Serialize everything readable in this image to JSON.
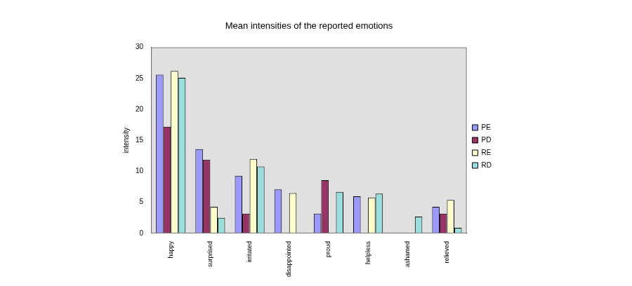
{
  "chart_data": {
    "type": "bar",
    "title": "Mean intensities of the reported emotions",
    "y_label": "intensity",
    "categories": [
      "happy",
      "surprised",
      "irritated",
      "disappointed",
      "proud",
      "helpless",
      "ashamed",
      "relieved"
    ],
    "series": [
      {
        "name": "PE",
        "color": "#9999ff",
        "values": [
          25.6,
          13.6,
          9.3,
          7.1,
          3.2,
          6.0,
          0,
          4.3
        ]
      },
      {
        "name": "PD",
        "color": "#993366",
        "values": [
          17.2,
          11.9,
          3.2,
          0,
          8.6,
          0,
          0,
          3.2
        ]
      },
      {
        "name": "RE",
        "color": "#ffffcc",
        "values": [
          26.2,
          4.3,
          12.0,
          6.5,
          0,
          5.8,
          0,
          5.4
        ]
      },
      {
        "name": "RD",
        "color": "#99dddd",
        "values": [
          25.1,
          2.5,
          10.8,
          0,
          6.7,
          6.4,
          2.7,
          0.9
        ]
      }
    ],
    "ylim": [
      0,
      30
    ],
    "yticks": [
      0,
      5,
      10,
      15,
      20,
      25,
      30
    ],
    "grid": false,
    "legend": "right"
  }
}
